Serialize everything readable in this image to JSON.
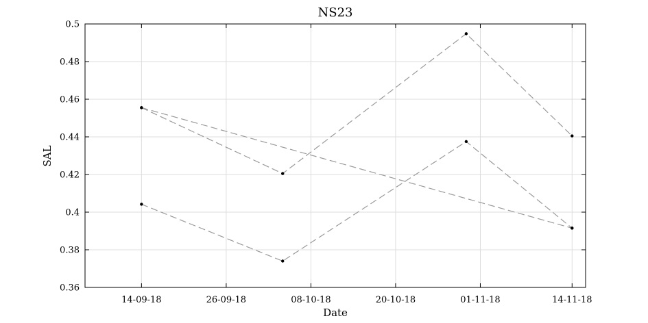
{
  "chart_data": {
    "type": "line",
    "title": "NS23",
    "xlabel": "Date",
    "ylabel": "SAL",
    "x_ticks": [
      "14-09-18",
      "26-09-18",
      "08-10-18",
      "20-10-18",
      "01-11-18",
      "14-11-18"
    ],
    "x_range": [
      "2018-09-06",
      "2018-11-14"
    ],
    "ylim": [
      0.36,
      0.5
    ],
    "y_ticks": [
      0.36,
      0.38,
      0.4,
      0.42,
      0.44,
      0.46,
      0.48,
      0.5
    ],
    "y_tick_labels": [
      "0.36",
      "0.38",
      "0.4",
      "0.42",
      "0.44",
      "0.46",
      "0.48",
      "0.5"
    ],
    "grid": true,
    "line_style": "dashed",
    "line_color": "#9a9a9a",
    "marker_color": "#000000",
    "series": [
      {
        "x": [
          "2018-09-14",
          "2018-11-14"
        ],
        "y": [
          0.4555,
          0.3915
        ]
      },
      {
        "x": [
          "2018-09-14",
          "2018-10-04",
          "2018-10-30",
          "2018-11-14"
        ],
        "y": [
          0.4555,
          0.4205,
          0.4948,
          0.4405
        ]
      },
      {
        "x": [
          "2018-09-14",
          "2018-10-04",
          "2018-10-30",
          "2018-11-14"
        ],
        "y": [
          0.4042,
          0.374,
          0.4375,
          0.3915
        ]
      }
    ]
  }
}
